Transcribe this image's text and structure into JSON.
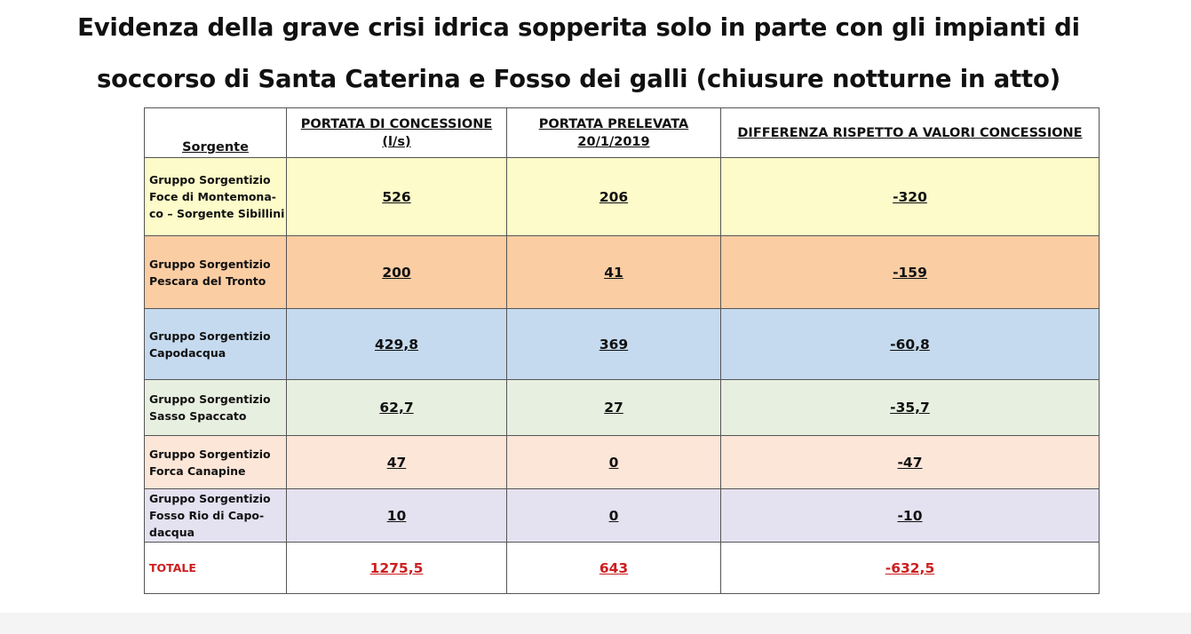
{
  "title": {
    "line1": "Evidenza della grave crisi idrica sopperita solo in parte con gli impianti di",
    "line2": "soccorso di Santa Caterina e Fosso dei galli (chiusure notturne in atto)"
  },
  "table": {
    "headers": {
      "source": "Sorgente",
      "concession": "PORTATA DI CONCESSIONE (l/s)",
      "withdrawn": "PORTATA PRELEVATA 20/1/2019",
      "difference": "DIFFERENZA RISPETTO A VALORI CONCESSIONE"
    },
    "rows": [
      {
        "source_lines": [
          "Gruppo Sorgentizio",
          "Foce di Montemona-",
          "co – Sorgente Sibillini"
        ],
        "concession": "526",
        "withdrawn": "206",
        "difference": "-320",
        "color": "#fdfbc9"
      },
      {
        "source_lines": [
          "Gruppo Sorgentizio",
          "Pescara del Tronto"
        ],
        "concession": "200",
        "withdrawn": "41",
        "difference": "-159",
        "color": "#fbcda3"
      },
      {
        "source_lines": [
          "Gruppo Sorgentizio",
          "Capodacqua"
        ],
        "concession": "429,8",
        "withdrawn": "369",
        "difference": "-60,8",
        "color": "#c5daef"
      },
      {
        "source_lines": [
          "Gruppo Sorgentizio",
          "Sasso Spaccato"
        ],
        "concession": "62,7",
        "withdrawn": "27",
        "difference": "-35,7",
        "color": "#e7efe0"
      },
      {
        "source_lines": [
          "Gruppo Sorgentizio",
          "Forca Canapine"
        ],
        "concession": "47",
        "withdrawn": "0",
        "difference": "-47",
        "color": "#fce6d8"
      },
      {
        "source_lines": [
          "Gruppo Sorgentizio",
          "Fosso Rio di Capo-",
          "dacqua"
        ],
        "concession": "10",
        "withdrawn": "0",
        "difference": "-10",
        "color": "#e4e1f0"
      }
    ],
    "total": {
      "label": "TOTALE",
      "concession": "1275,5",
      "withdrawn": "643",
      "difference": "-632,5",
      "color": "#cc1f1f"
    }
  }
}
